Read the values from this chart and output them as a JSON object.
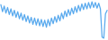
{
  "line_color": "#5aaaee",
  "background_color": "#ffffff",
  "linewidth": 0.9,
  "values": [
    4800,
    3800,
    4600,
    3600,
    4400,
    3400,
    4200,
    3200,
    4000,
    3000,
    3800,
    2800,
    3600,
    2600,
    3400,
    2400,
    3200,
    2200,
    3000,
    2000,
    2900,
    1900,
    2800,
    1800,
    2700,
    1700,
    2600,
    1600,
    2700,
    1800,
    2900,
    2100,
    3100,
    2300,
    3300,
    2500,
    3600,
    2800,
    3900,
    3100,
    4100,
    3300,
    4300,
    3500,
    4500,
    3700,
    4700,
    3900,
    4900,
    4100,
    5000,
    4200,
    5100,
    4300,
    5200,
    4400,
    5100,
    4300,
    5000,
    4200,
    200,
    50,
    3500,
    4000
  ]
}
